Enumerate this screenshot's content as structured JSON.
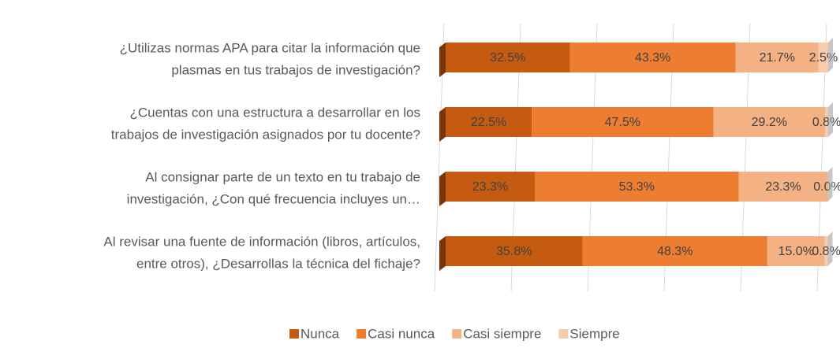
{
  "chart_data": {
    "type": "stacked_barh",
    "categories": [
      [
        "¿Utilizas normas APA para citar la información que",
        "plasmas en tus trabajos de investigación?"
      ],
      [
        "¿Cuentas con una estructura a desarrollar en los",
        "trabajos de investigación asignados por tu docente?"
      ],
      [
        "Al consignar parte de un texto en tu trabajo de",
        "investigación, ¿Con qué frecuencia incluyes un…"
      ],
      [
        "Al revisar una fuente de información (libros, artículos,",
        "entre otros), ¿Desarrollas la técnica del fichaje?"
      ]
    ],
    "series": [
      {
        "name": "Nunca",
        "color": "#c55a11",
        "values": [
          32.5,
          22.5,
          23.3,
          35.8
        ],
        "value_labels": [
          "32.5%",
          "22.5%",
          "23.3%",
          "35.8%"
        ]
      },
      {
        "name": "Casi nunca",
        "color": "#ed7d31",
        "values": [
          43.3,
          47.5,
          53.3,
          48.3
        ],
        "value_labels": [
          "43.3%",
          "47.5%",
          "53.3%",
          "48.3%"
        ]
      },
      {
        "name": "Casi siempre",
        "color": "#f4b183",
        "values": [
          21.7,
          29.2,
          23.3,
          15.0
        ],
        "value_labels": [
          "21.7%",
          "29.2%",
          "23.3%",
          "15.0%"
        ]
      },
      {
        "name": "Siempre",
        "color": "#f8cbad",
        "values": [
          2.5,
          0.8,
          0.0,
          0.8
        ],
        "value_labels": [
          "2.5%",
          "0.8%",
          "0.0%",
          "0.8%"
        ]
      }
    ],
    "xlim": [
      0,
      100
    ],
    "grid": true,
    "legend": "bottom"
  }
}
